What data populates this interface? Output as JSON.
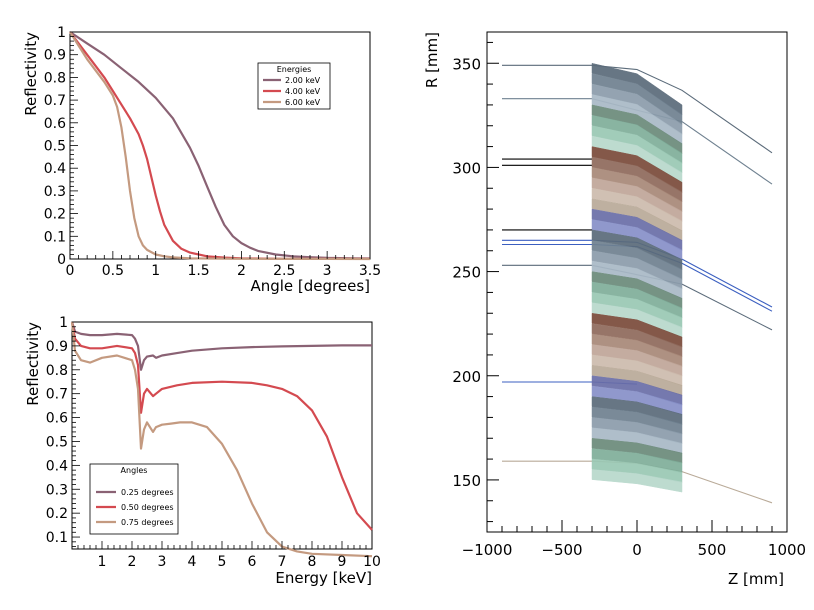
{
  "colors": {
    "mauve": "#8a6274",
    "red": "#d44a50",
    "tan": "#c49a80",
    "axis": "#000000"
  },
  "chart_data": [
    {
      "type": "line",
      "title": "",
      "xlabel": "Angle [degrees]",
      "ylabel": "Reflectivity",
      "xlim": [
        0,
        3.5
      ],
      "ylim": [
        0,
        1
      ],
      "xticks": [
        "0",
        "0.5",
        "1",
        "1.5",
        "2",
        "2.5",
        "3",
        "3.5"
      ],
      "yticks": [
        "0",
        "0.1",
        "0.2",
        "0.3",
        "0.4",
        "0.5",
        "0.6",
        "0.7",
        "0.8",
        "0.9",
        "1"
      ],
      "legend_title": "Energies",
      "legend_position": "top-right",
      "series": [
        {
          "name": "2.00 keV",
          "color": "#8a6274",
          "x": [
            0,
            0.2,
            0.4,
            0.6,
            0.8,
            1.0,
            1.2,
            1.4,
            1.5,
            1.6,
            1.7,
            1.8,
            1.9,
            2.0,
            2.1,
            2.2,
            2.4,
            2.6,
            2.8,
            3.0,
            3.3,
            3.5
          ],
          "y": [
            1.0,
            0.95,
            0.9,
            0.84,
            0.78,
            0.71,
            0.62,
            0.49,
            0.41,
            0.32,
            0.23,
            0.15,
            0.1,
            0.07,
            0.05,
            0.035,
            0.02,
            0.012,
            0.008,
            0.005,
            0.003,
            0.002
          ]
        },
        {
          "name": "4.00 keV",
          "color": "#d44a50",
          "x": [
            0,
            0.2,
            0.4,
            0.5,
            0.6,
            0.7,
            0.8,
            0.85,
            0.9,
            0.95,
            1.0,
            1.05,
            1.1,
            1.2,
            1.3,
            1.4,
            1.6,
            1.8,
            2.0,
            2.5,
            3.0,
            3.5
          ],
          "y": [
            1.0,
            0.9,
            0.8,
            0.74,
            0.68,
            0.62,
            0.55,
            0.5,
            0.44,
            0.36,
            0.28,
            0.21,
            0.15,
            0.08,
            0.045,
            0.028,
            0.012,
            0.006,
            0.003,
            0.001,
            0.0005,
            0.0003
          ]
        },
        {
          "name": "6.00 keV",
          "color": "#c49a80",
          "x": [
            0,
            0.2,
            0.4,
            0.5,
            0.55,
            0.6,
            0.65,
            0.7,
            0.75,
            0.8,
            0.85,
            0.9,
            1.0,
            1.1,
            1.2,
            1.4,
            1.6,
            2.0,
            2.5,
            3.0,
            3.5
          ],
          "y": [
            1.0,
            0.88,
            0.78,
            0.72,
            0.67,
            0.58,
            0.45,
            0.3,
            0.18,
            0.1,
            0.06,
            0.04,
            0.02,
            0.012,
            0.007,
            0.003,
            0.002,
            0.001,
            0.0005,
            0.0003,
            0.0002
          ]
        }
      ]
    },
    {
      "type": "line",
      "title": "",
      "xlabel": "Energy [keV]",
      "ylabel": "Reflectivity",
      "xlim": [
        0,
        10
      ],
      "ylim": [
        0.05,
        1
      ],
      "xticks": [
        "1",
        "2",
        "3",
        "4",
        "5",
        "6",
        "7",
        "8",
        "9",
        "10"
      ],
      "yticks": [
        "0.1",
        "0.2",
        "0.3",
        "0.4",
        "0.5",
        "0.6",
        "0.7",
        "0.8",
        "0.9",
        "1"
      ],
      "legend_title": "Angles",
      "legend_position": "bottom-left",
      "series": [
        {
          "name": "0.25 degrees",
          "color": "#8a6274",
          "x": [
            0,
            0.1,
            0.3,
            0.6,
            1.0,
            1.5,
            2.0,
            2.1,
            2.2,
            2.3,
            2.4,
            2.5,
            2.7,
            2.8,
            3.0,
            3.5,
            4,
            5,
            6,
            7,
            8,
            9,
            10
          ],
          "y": [
            1.0,
            0.96,
            0.95,
            0.945,
            0.945,
            0.95,
            0.945,
            0.93,
            0.9,
            0.8,
            0.84,
            0.855,
            0.86,
            0.85,
            0.86,
            0.87,
            0.88,
            0.89,
            0.895,
            0.898,
            0.9,
            0.902,
            0.902
          ]
        },
        {
          "name": "0.50 degrees",
          "color": "#d44a50",
          "x": [
            0,
            0.1,
            0.3,
            0.6,
            1.0,
            1.5,
            2.0,
            2.1,
            2.2,
            2.3,
            2.4,
            2.5,
            2.7,
            2.8,
            3.0,
            3.5,
            4,
            5,
            6,
            6.5,
            7,
            7.5,
            8,
            8.5,
            9,
            9.5,
            10
          ],
          "y": [
            1.0,
            0.93,
            0.9,
            0.89,
            0.89,
            0.9,
            0.89,
            0.87,
            0.82,
            0.62,
            0.7,
            0.72,
            0.69,
            0.7,
            0.72,
            0.735,
            0.745,
            0.75,
            0.745,
            0.735,
            0.72,
            0.69,
            0.63,
            0.52,
            0.35,
            0.2,
            0.13
          ]
        },
        {
          "name": "0.75 degrees",
          "color": "#c49a80",
          "x": [
            0,
            0.1,
            0.3,
            0.6,
            1.0,
            1.5,
            2.0,
            2.1,
            2.2,
            2.3,
            2.4,
            2.5,
            2.7,
            2.8,
            3.0,
            3.3,
            3.6,
            4.0,
            4.5,
            5.0,
            5.5,
            6.0,
            6.5,
            7.0,
            7.5,
            8.0,
            9.0,
            10
          ],
          "y": [
            1.0,
            0.88,
            0.84,
            0.83,
            0.85,
            0.86,
            0.84,
            0.8,
            0.72,
            0.47,
            0.55,
            0.58,
            0.54,
            0.56,
            0.57,
            0.575,
            0.58,
            0.58,
            0.56,
            0.49,
            0.38,
            0.24,
            0.12,
            0.06,
            0.04,
            0.03,
            0.025,
            0.02
          ]
        }
      ]
    },
    {
      "type": "line",
      "title": "",
      "xlabel": "Z [mm]",
      "ylabel": "R [mm]",
      "xlim": [
        -1000,
        1000
      ],
      "ylim": [
        125,
        365
      ],
      "xticks": [
        "-1000",
        "-500",
        "0",
        "500",
        "1000"
      ],
      "yticks": [
        "150",
        "200",
        "250",
        "300",
        "350"
      ],
      "shells": {
        "z": [
          -300,
          0,
          300
        ],
        "count": 40,
        "r_outer_front": 350,
        "r_inner_front": 155,
        "front_length": 300,
        "back_length": 300,
        "palette": [
          "#5b6b7a",
          "#6f8190",
          "#8b9cab",
          "#a9b9c6",
          "#6b8a7a",
          "#7fae9a",
          "#9ac8b4",
          "#b8d8cc",
          "#7a4a3a",
          "#8f6a5c",
          "#a88878",
          "#bfa598",
          "#cdbbad",
          "#b9aa98",
          "#6a6ea8",
          "#8790c8"
        ]
      },
      "lines": [
        {
          "color": "#5b6b7a",
          "z": [
            -900,
            -300,
            0,
            300,
            900
          ],
          "r": [
            349,
            349,
            347,
            337,
            307
          ]
        },
        {
          "color": "#6f8190",
          "z": [
            -900,
            -300,
            300,
            900
          ],
          "r": [
            333,
            333,
            322,
            292
          ]
        },
        {
          "color": "#000000",
          "z": [
            -900,
            -300
          ],
          "r": [
            304,
            304
          ]
        },
        {
          "color": "#000000",
          "z": [
            -900,
            -300
          ],
          "r": [
            301,
            301
          ]
        },
        {
          "color": "#000000",
          "z": [
            -900,
            -300
          ],
          "r": [
            270,
            270
          ]
        },
        {
          "color": "#3b5fc0",
          "z": [
            -900,
            -300,
            0,
            300,
            900
          ],
          "r": [
            265,
            265,
            264,
            256,
            233
          ]
        },
        {
          "color": "#3b5fc0",
          "z": [
            -900,
            -300,
            0,
            300,
            900
          ],
          "r": [
            263,
            263,
            262,
            254,
            231
          ]
        },
        {
          "color": "#5b6b7a",
          "z": [
            -900,
            -300,
            300,
            900
          ],
          "r": [
            253,
            253,
            244,
            222
          ]
        },
        {
          "color": "#3b5fc0",
          "z": [
            -900,
            -300,
            0
          ],
          "r": [
            197,
            197,
            196
          ]
        },
        {
          "color": "#b9aa98",
          "z": [
            -900,
            -300,
            0,
            300,
            900
          ],
          "r": [
            159,
            159,
            158,
            154,
            139
          ]
        }
      ]
    }
  ]
}
